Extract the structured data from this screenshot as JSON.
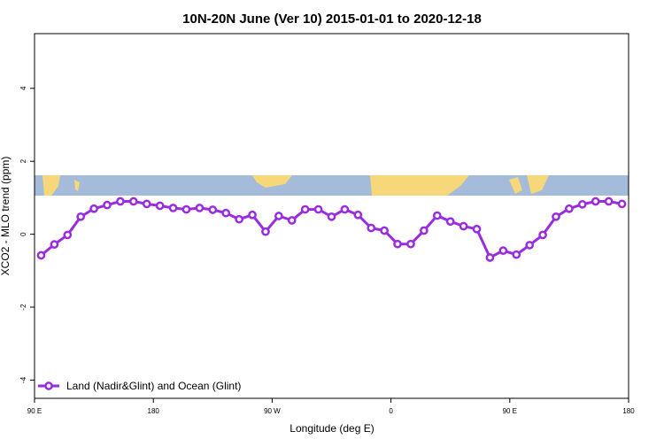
{
  "chart_data": {
    "type": "line",
    "title": "10N-20N June (Ver 10)   2015-01-01 to 2020-12-18",
    "x_label": "Longitude (deg E)",
    "y_label": "XCO2 - MLO trend (ppm)",
    "xlim": [
      90,
      540
    ],
    "ylim": [
      -4.5,
      5.5
    ],
    "xticks": [
      {
        "value": 90,
        "label": "90 E"
      },
      {
        "value": 180,
        "label": "180"
      },
      {
        "value": 270,
        "label": "90 W"
      },
      {
        "value": 360,
        "label": "0"
      },
      {
        "value": 450,
        "label": "90 E"
      },
      {
        "value": 540,
        "label": "180"
      }
    ],
    "yticks": [
      -4,
      -2,
      0,
      2,
      4
    ],
    "legend": "bottom-left",
    "x": [
      95,
      105,
      115,
      125,
      135,
      145,
      155,
      165,
      175,
      185,
      195,
      205,
      215,
      225,
      235,
      245,
      255,
      265,
      275,
      285,
      295,
      305,
      315,
      325,
      335,
      345,
      355,
      365,
      375,
      385,
      395,
      405,
      415,
      425,
      435,
      445,
      455,
      465,
      475,
      485,
      495,
      505,
      515,
      525,
      535
    ],
    "series": [
      {
        "name": "Land (Nadir&Glint) and Ocean (Glint)",
        "color": "#9a2ce0",
        "values": [
          -0.58,
          -0.28,
          -0.02,
          0.48,
          0.7,
          0.8,
          0.9,
          0.9,
          0.83,
          0.78,
          0.72,
          0.68,
          0.72,
          0.67,
          0.58,
          0.41,
          0.53,
          0.07,
          0.5,
          0.38,
          0.68,
          0.68,
          0.48,
          0.68,
          0.53,
          0.17,
          0.1,
          -0.27,
          -0.27,
          0.1,
          0.51,
          0.35,
          0.22,
          0.14,
          -0.64,
          -0.45,
          -0.56,
          -0.3,
          -0.02,
          0.48,
          0.7,
          0.82,
          0.9,
          0.9,
          0.83
        ]
      }
    ]
  }
}
